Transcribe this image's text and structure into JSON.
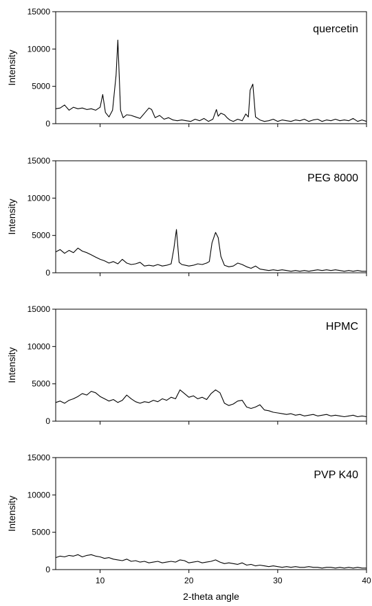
{
  "figure": {
    "xlabel": "2-theta angle"
  },
  "chart_data": [
    {
      "type": "line",
      "title": "quercetin",
      "ylabel": "Intensity",
      "xlim": [
        5,
        40
      ],
      "ylim": [
        0,
        15000
      ],
      "xticks": [
        10,
        20,
        30,
        40
      ],
      "yticks": [
        0,
        5000,
        10000,
        15000
      ],
      "xtick_labels": [],
      "ytick_labels": [
        "0",
        "5000",
        "10000",
        "15000"
      ],
      "grid": false,
      "series": [
        {
          "x": [
            5.0,
            5.5,
            6.0,
            6.5,
            7.0,
            7.5,
            8.0,
            8.5,
            9.0,
            9.5,
            10.0,
            10.3,
            10.6,
            11.0,
            11.4,
            11.8,
            12.0,
            12.3,
            12.6,
            13.0,
            13.5,
            14.0,
            14.5,
            15.0,
            15.5,
            15.8,
            16.2,
            16.7,
            17.2,
            17.7,
            18.2,
            18.7,
            19.2,
            19.7,
            20.2,
            20.7,
            21.2,
            21.7,
            22.2,
            22.7,
            23.1,
            23.3,
            23.6,
            24.0,
            24.3,
            24.6,
            25.0,
            25.5,
            26.0,
            26.4,
            26.7,
            26.9,
            27.2,
            27.5,
            28.0,
            28.5,
            29.0,
            29.5,
            30.0,
            30.5,
            31.0,
            31.5,
            32.0,
            32.5,
            33.0,
            33.5,
            34.0,
            34.5,
            35.0,
            35.5,
            36.0,
            36.5,
            37.0,
            37.5,
            38.0,
            38.5,
            39.0,
            39.5,
            40.0
          ],
          "y": [
            2000,
            2100,
            2500,
            1800,
            2200,
            2000,
            2100,
            1900,
            2000,
            1800,
            2200,
            3900,
            1500,
            900,
            1800,
            6500,
            11200,
            1800,
            800,
            1200,
            1100,
            900,
            700,
            1400,
            2100,
            1900,
            800,
            1100,
            600,
            800,
            500,
            400,
            500,
            400,
            300,
            600,
            400,
            700,
            300,
            600,
            1900,
            1000,
            1400,
            1200,
            800,
            500,
            300,
            600,
            400,
            1300,
            900,
            4500,
            5300,
            900,
            500,
            300,
            400,
            600,
            300,
            500,
            400,
            300,
            500,
            400,
            600,
            300,
            500,
            600,
            300,
            500,
            400,
            600,
            400,
            500,
            400,
            700,
            300,
            500,
            300
          ]
        }
      ]
    },
    {
      "type": "line",
      "title": "PEG 8000",
      "ylabel": "Intensity",
      "xlim": [
        5,
        40
      ],
      "ylim": [
        0,
        15000
      ],
      "xticks": [
        10,
        20,
        30,
        40
      ],
      "yticks": [
        0,
        5000,
        10000,
        15000
      ],
      "xtick_labels": [],
      "ytick_labels": [
        "0",
        "5000",
        "10000",
        "15000"
      ],
      "grid": false,
      "series": [
        {
          "x": [
            5.0,
            5.5,
            6.0,
            6.5,
            7.0,
            7.5,
            8.0,
            8.5,
            9.0,
            9.5,
            10.0,
            10.5,
            11.0,
            11.5,
            12.0,
            12.5,
            13.0,
            13.5,
            14.0,
            14.5,
            15.0,
            15.5,
            16.0,
            16.5,
            17.0,
            17.5,
            18.0,
            18.3,
            18.6,
            18.9,
            19.2,
            19.6,
            20.0,
            20.5,
            21.0,
            21.5,
            22.0,
            22.3,
            22.6,
            23.0,
            23.3,
            23.6,
            24.0,
            24.5,
            25.0,
            25.5,
            26.0,
            26.5,
            27.0,
            27.5,
            28.0,
            28.5,
            29.0,
            29.5,
            30.0,
            30.5,
            31.0,
            31.5,
            32.0,
            32.5,
            33.0,
            33.5,
            34.0,
            34.5,
            35.0,
            35.5,
            36.0,
            36.5,
            37.0,
            37.5,
            38.0,
            38.5,
            39.0,
            39.5,
            40.0
          ],
          "y": [
            2800,
            3100,
            2600,
            3000,
            2700,
            3300,
            2900,
            2700,
            2400,
            2100,
            1800,
            1600,
            1300,
            1500,
            1200,
            1800,
            1300,
            1100,
            1200,
            1400,
            900,
            1000,
            900,
            1100,
            900,
            1000,
            1200,
            3200,
            5800,
            1400,
            1100,
            1000,
            900,
            1000,
            1200,
            1100,
            1300,
            1500,
            4000,
            5400,
            4700,
            2200,
            1000,
            800,
            900,
            1300,
            1100,
            800,
            600,
            900,
            500,
            400,
            300,
            400,
            300,
            400,
            300,
            200,
            300,
            200,
            300,
            200,
            300,
            400,
            300,
            400,
            300,
            400,
            300,
            200,
            300,
            200,
            300,
            200,
            200
          ]
        }
      ]
    },
    {
      "type": "line",
      "title": "HPMC",
      "ylabel": "Intensity",
      "xlim": [
        5,
        40
      ],
      "ylim": [
        0,
        15000
      ],
      "xticks": [
        10,
        20,
        30,
        40
      ],
      "yticks": [
        0,
        5000,
        10000,
        15000
      ],
      "xtick_labels": [],
      "ytick_labels": [
        "0",
        "5000",
        "10000",
        "15000"
      ],
      "grid": false,
      "series": [
        {
          "x": [
            5.0,
            5.5,
            6.0,
            6.5,
            7.0,
            7.5,
            8.0,
            8.5,
            9.0,
            9.5,
            10.0,
            10.5,
            11.0,
            11.5,
            12.0,
            12.5,
            13.0,
            13.5,
            14.0,
            14.5,
            15.0,
            15.5,
            16.0,
            16.5,
            17.0,
            17.5,
            18.0,
            18.5,
            19.0,
            19.5,
            20.0,
            20.5,
            21.0,
            21.5,
            22.0,
            22.5,
            23.0,
            23.5,
            24.0,
            24.5,
            25.0,
            25.5,
            26.0,
            26.5,
            27.0,
            27.5,
            28.0,
            28.5,
            29.0,
            29.5,
            30.0,
            30.5,
            31.0,
            31.5,
            32.0,
            32.5,
            33.0,
            33.5,
            34.0,
            34.5,
            35.0,
            35.5,
            36.0,
            36.5,
            37.0,
            37.5,
            38.0,
            38.5,
            39.0,
            39.5,
            40.0
          ],
          "y": [
            2500,
            2700,
            2400,
            2800,
            3000,
            3300,
            3700,
            3500,
            4000,
            3800,
            3300,
            3000,
            2700,
            2900,
            2500,
            2800,
            3500,
            3000,
            2600,
            2400,
            2600,
            2500,
            2800,
            2600,
            3000,
            2800,
            3200,
            3000,
            4200,
            3700,
            3200,
            3400,
            3000,
            3200,
            2900,
            3700,
            4200,
            3800,
            2400,
            2100,
            2300,
            2700,
            2800,
            1900,
            1700,
            1900,
            2200,
            1500,
            1400,
            1200,
            1100,
            1000,
            900,
            1000,
            800,
            900,
            700,
            800,
            900,
            700,
            800,
            900,
            700,
            800,
            700,
            600,
            700,
            800,
            600,
            700,
            600
          ]
        }
      ]
    },
    {
      "type": "line",
      "title": "PVP K40",
      "ylabel": "Intensity",
      "xlim": [
        5,
        40
      ],
      "ylim": [
        0,
        15000
      ],
      "xticks": [
        10,
        20,
        30,
        40
      ],
      "yticks": [
        0,
        5000,
        10000,
        15000
      ],
      "xtick_labels": [
        "10",
        "20",
        "30",
        "40"
      ],
      "ytick_labels": [
        "0",
        "5000",
        "10000",
        "15000"
      ],
      "grid": false,
      "series": [
        {
          "x": [
            5.0,
            5.5,
            6.0,
            6.5,
            7.0,
            7.5,
            8.0,
            8.5,
            9.0,
            9.5,
            10.0,
            10.5,
            11.0,
            11.5,
            12.0,
            12.5,
            13.0,
            13.5,
            14.0,
            14.5,
            15.0,
            15.5,
            16.0,
            16.5,
            17.0,
            17.5,
            18.0,
            18.5,
            19.0,
            19.5,
            20.0,
            20.5,
            21.0,
            21.5,
            22.0,
            22.5,
            23.0,
            23.5,
            24.0,
            24.5,
            25.0,
            25.5,
            26.0,
            26.5,
            27.0,
            27.5,
            28.0,
            28.5,
            29.0,
            29.5,
            30.0,
            30.5,
            31.0,
            31.5,
            32.0,
            32.5,
            33.0,
            33.5,
            34.0,
            34.5,
            35.0,
            35.5,
            36.0,
            36.5,
            37.0,
            37.5,
            38.0,
            38.5,
            39.0,
            39.5,
            40.0
          ],
          "y": [
            1600,
            1800,
            1700,
            1900,
            1800,
            2000,
            1700,
            1900,
            2000,
            1800,
            1700,
            1500,
            1600,
            1400,
            1300,
            1200,
            1400,
            1100,
            1200,
            1000,
            1100,
            900,
            1000,
            1100,
            900,
            1000,
            1100,
            1000,
            1300,
            1200,
            900,
            1000,
            1100,
            900,
            1000,
            1100,
            1300,
            1000,
            800,
            900,
            800,
            700,
            900,
            600,
            700,
            500,
            600,
            500,
            400,
            500,
            400,
            300,
            400,
            300,
            400,
            300,
            300,
            400,
            300,
            300,
            200,
            300,
            300,
            200,
            300,
            200,
            300,
            200,
            300,
            200,
            200
          ]
        }
      ]
    }
  ]
}
